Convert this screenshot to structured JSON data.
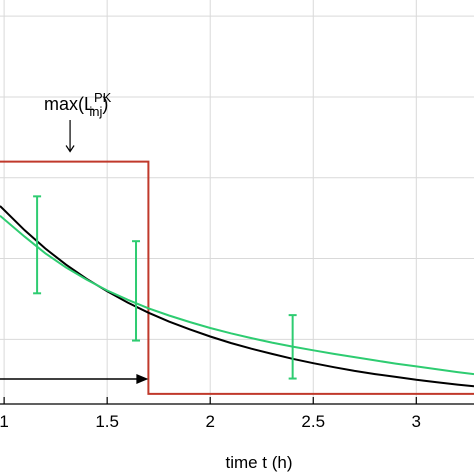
{
  "chart_data": {
    "type": "line",
    "title": "",
    "xlabel": "time t (h)",
    "ylabel": "",
    "xlim": [
      0.98,
      3.28
    ],
    "ylim": [
      0,
      1
    ],
    "grid": true,
    "x_ticks": [
      {
        "value": 1,
        "label": "1"
      },
      {
        "value": 1.5,
        "label": "1.5"
      },
      {
        "value": 2,
        "label": "2"
      },
      {
        "value": 2.5,
        "label": "2.5"
      },
      {
        "value": 3,
        "label": "3"
      }
    ],
    "y_grid": [
      0.16,
      0.36,
      0.56,
      0.76,
      0.96
    ],
    "colors": {
      "model": "#000000",
      "fit": "#2ecc71",
      "data": "#2ecc71",
      "injection": "#c0392b",
      "grid": "#d9d9d9"
    },
    "series": [
      {
        "type": "line",
        "x": [
          0.98,
          1.1,
          1.2,
          1.3,
          1.4,
          1.5,
          1.6,
          1.7,
          1.8,
          1.9,
          2.0,
          2.1,
          2.2,
          2.3,
          2.4,
          2.5,
          2.6,
          2.7,
          2.8,
          2.9,
          3.0,
          3.1,
          3.2,
          3.28
        ],
        "y": [
          0.49,
          0.43,
          0.385,
          0.345,
          0.31,
          0.279,
          0.251,
          0.226,
          0.204,
          0.185,
          0.167,
          0.151,
          0.137,
          0.124,
          0.112,
          0.101,
          0.091,
          0.082,
          0.074,
          0.067,
          0.06,
          0.054,
          0.048,
          0.044
        ]
      },
      {
        "type": "line",
        "x": [
          0.98,
          1.1,
          1.2,
          1.3,
          1.4,
          1.5,
          1.6,
          1.7,
          1.8,
          1.9,
          2.0,
          2.1,
          2.2,
          2.3,
          2.4,
          2.5,
          2.6,
          2.7,
          2.8,
          2.9,
          3.0,
          3.1,
          3.2,
          3.28
        ],
        "y": [
          0.466,
          0.414,
          0.373,
          0.338,
          0.308,
          0.281,
          0.258,
          0.237,
          0.219,
          0.203,
          0.188,
          0.175,
          0.163,
          0.152,
          0.142,
          0.133,
          0.124,
          0.116,
          0.108,
          0.1,
          0.093,
          0.086,
          0.079,
          0.074
        ]
      },
      {
        "type": "errorbar",
        "x": [
          1.16,
          1.64,
          2.4
        ],
        "y": [
          0.39,
          0.28,
          0.142
        ],
        "lower": [
          0.274,
          0.157,
          0.063
        ],
        "upper": [
          0.514,
          0.403,
          0.22
        ]
      },
      {
        "type": "step",
        "x": [
          0.98,
          1.7,
          1.7,
          3.28
        ],
        "y": [
          0.6,
          0.6,
          0.025,
          0.025
        ]
      }
    ],
    "annotations": [
      {
        "text": "max(L",
        "superscript": "PK",
        "subscript": "inj",
        "close": ")",
        "x": 1.32,
        "y": 0.755,
        "arrow_to": [
          1.32,
          0.625
        ]
      },
      {
        "type": "arrow",
        "from": [
          0.98,
          0.062
        ],
        "to": [
          1.7,
          0.062
        ]
      }
    ]
  }
}
